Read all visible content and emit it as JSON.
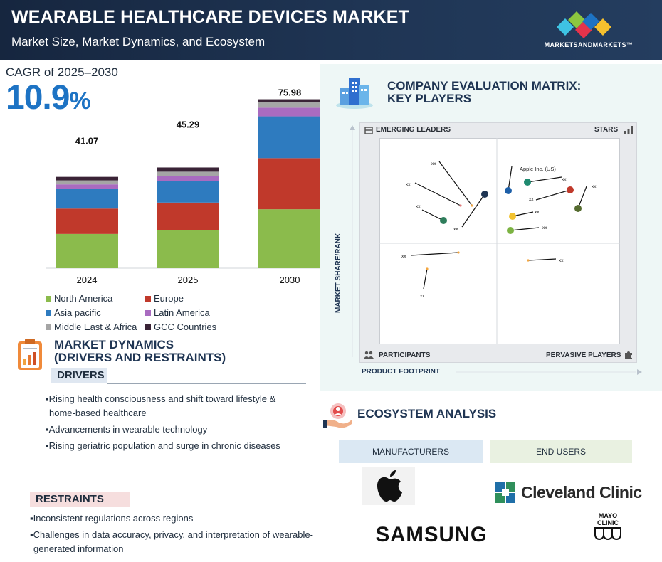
{
  "header": {
    "title": "WEARABLE HEALTHCARE DEVICES MARKET",
    "subtitle": "Market Size, Market Dynamics, and Ecosystem",
    "logo_text": "MARKETSANDMARKETS™"
  },
  "cagr": {
    "label": "CAGR of 2025–2030",
    "value": "10.9",
    "unit": "%"
  },
  "chart_data": {
    "type": "bar",
    "stacked": true,
    "categories": [
      "2024",
      "2025",
      "2030"
    ],
    "totals": [
      "41.07",
      "45.29",
      "75.98"
    ],
    "series": [
      {
        "name": "North America",
        "color": "#8bbb4c",
        "values": [
          15.4,
          17.1,
          26.5
        ]
      },
      {
        "name": "Europe",
        "color": "#c0392b",
        "values": [
          11.4,
          12.4,
          23.0
        ]
      },
      {
        "name": "Asia pacific",
        "color": "#2e7bbf",
        "values": [
          8.9,
          9.7,
          18.8
        ]
      },
      {
        "name": "Latin America",
        "color": "#a96bc0",
        "values": [
          2.0,
          2.2,
          3.9
        ]
      },
      {
        "name": "Middle East & Africa",
        "color": "#a5a5a5",
        "values": [
          1.8,
          2.0,
          2.4
        ]
      },
      {
        "name": "GCC Countries",
        "color": "#3a2336",
        "values": [
          1.57,
          1.89,
          1.38
        ]
      }
    ],
    "ylim": [
      0,
      80
    ],
    "grid": false,
    "legend_position": "bottom"
  },
  "market_dynamics": {
    "title_line1": "MARKET DYNAMICS",
    "title_line2": "(DRIVERS AND RESTRAINTS)",
    "drivers_label": "DRIVERS",
    "drivers": [
      "Rising health consciousness and shift toward lifestyle &",
      "home-based healthcare",
      "Advancements in wearable technology",
      "Rising geriatric population and surge in chronic diseases"
    ],
    "restraints_label": "RESTRAINTS",
    "restraints": [
      "Inconsistent regulations across regions",
      "Challenges in data accuracy, privacy, and interpretation of wearable-",
      "generated information"
    ]
  },
  "matrix": {
    "title_line1": "COMPANY EVALUATION MATRIX:",
    "title_line2": "KEY PLAYERS",
    "quadrant_top_left": "EMERGING LEADERS",
    "quadrant_top_right": "STARS",
    "quadrant_bottom_left": "PARTICIPANTS",
    "quadrant_bottom_right": "PERVASIVE PLAYERS",
    "y_axis": "MARKET SHARE/RANK",
    "x_axis": "PRODUCT FOOTPRINT",
    "highlight_company": "Apple Inc. (US)",
    "placeholder": "xx",
    "points": [
      {
        "color": "#1d5fa8",
        "label": "Apple Inc. (US)"
      },
      {
        "color": "#1f8a70",
        "label": "xx"
      },
      {
        "color": "#c0392b",
        "label": "xx"
      },
      {
        "color": "#556b2f",
        "label": "xx"
      },
      {
        "color": "#f2c230",
        "label": "xx"
      },
      {
        "color": "#7cb342",
        "label": "xx"
      },
      {
        "color": "#1f3553",
        "label": "xx"
      },
      {
        "color": "#2e7d5b",
        "label": "xx"
      },
      {
        "color": "#e07a7a",
        "label": "xx"
      },
      {
        "color": "#f3a640",
        "label": "xx"
      },
      {
        "color": "#f3a640",
        "label": "xx"
      },
      {
        "color": "#f3a640",
        "label": "xx"
      }
    ]
  },
  "ecosystem": {
    "title": "ECOSYSTEM ANALYSIS",
    "manufacturers_label": "MANUFACTURERS",
    "end_users_label": "END USERS",
    "manufacturers": [
      "Apple",
      "SAMSUNG"
    ],
    "end_users": [
      "Cleveland Clinic",
      "MAYO CLINIC"
    ]
  }
}
